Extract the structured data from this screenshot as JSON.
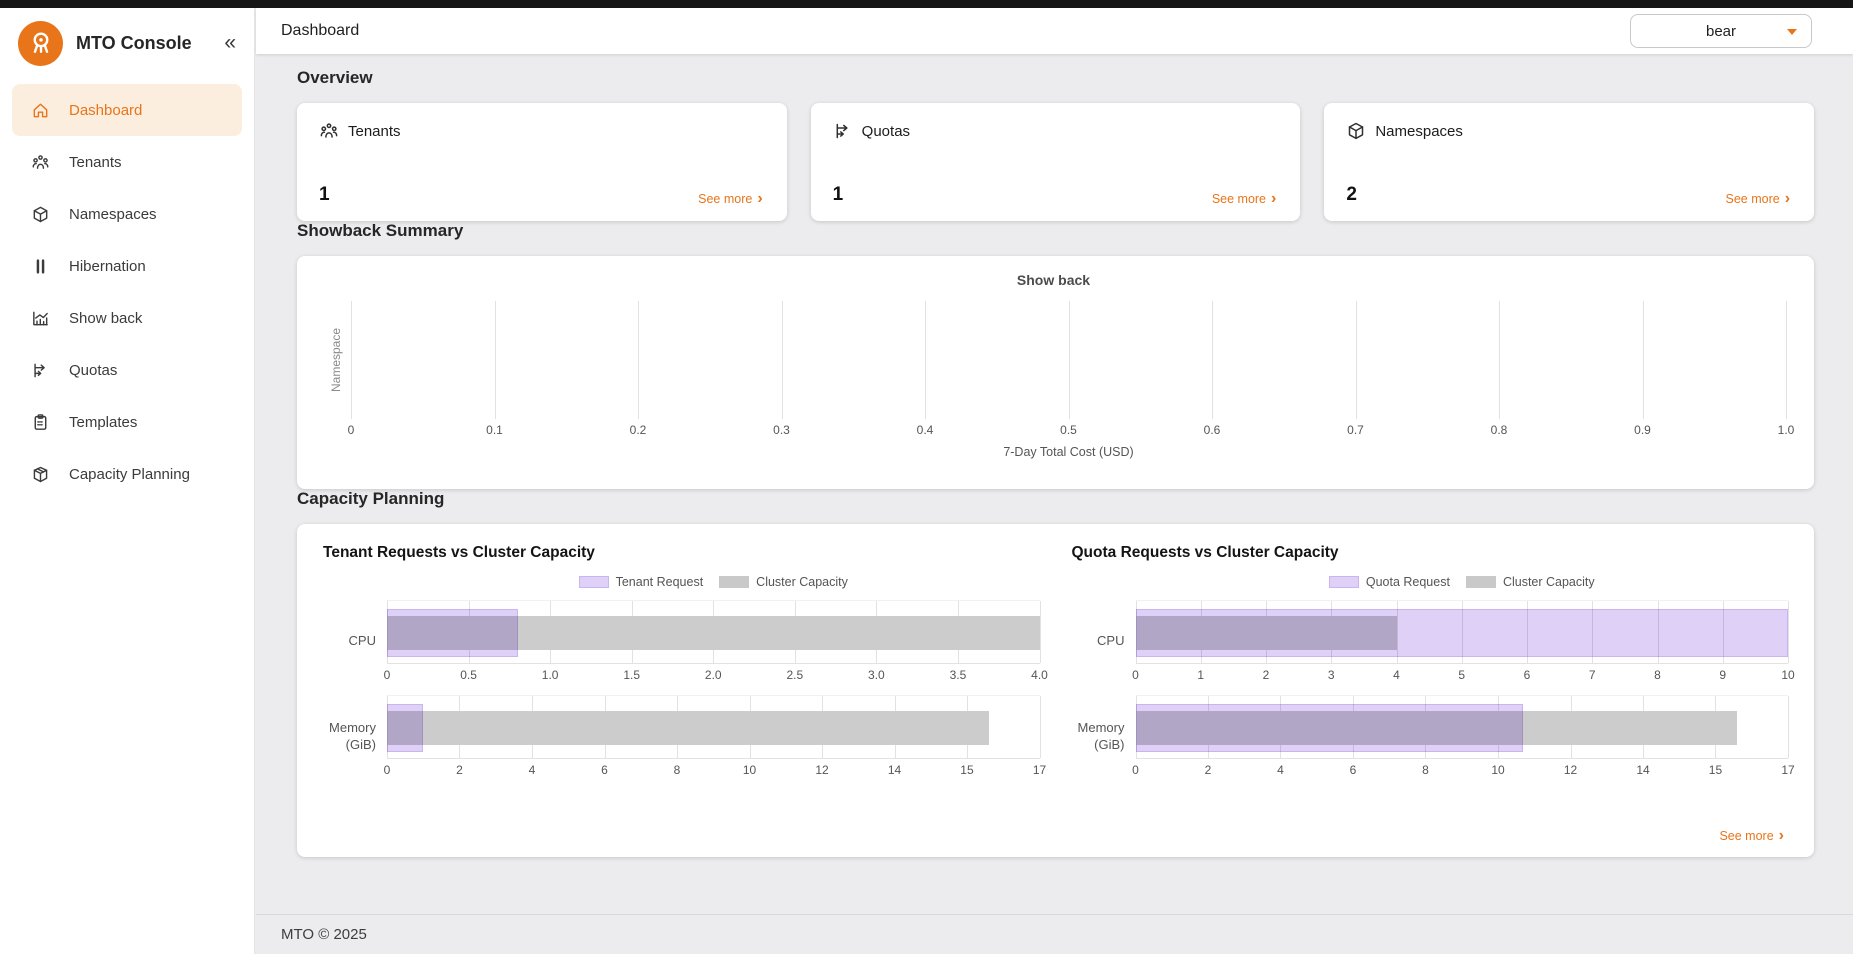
{
  "app": {
    "title": "MTO Console"
  },
  "glyphs": {
    "collapse": "«",
    "chevron_right": "›"
  },
  "header": {
    "title": "Dashboard",
    "tenant_selected": "bear"
  },
  "sidebar": {
    "items": [
      {
        "label": "Dashboard",
        "icon": "home-icon",
        "active": true
      },
      {
        "label": "Tenants",
        "icon": "tenants-icon",
        "active": false
      },
      {
        "label": "Namespaces",
        "icon": "namespaces-icon",
        "active": false
      },
      {
        "label": "Hibernation",
        "icon": "hibernation-icon",
        "active": false
      },
      {
        "label": "Show back",
        "icon": "showback-icon",
        "active": false
      },
      {
        "label": "Quotas",
        "icon": "quotas-icon",
        "active": false
      },
      {
        "label": "Templates",
        "icon": "templates-icon",
        "active": false
      },
      {
        "label": "Capacity Planning",
        "icon": "capacity-planning-icon",
        "active": false
      }
    ]
  },
  "sections": {
    "overview": "Overview",
    "showback": "Showback Summary",
    "capacity": "Capacity Planning"
  },
  "labels": {
    "see_more": "See more"
  },
  "overview": {
    "cards": [
      {
        "label": "Tenants",
        "value": "1",
        "icon": "tenants-icon"
      },
      {
        "label": "Quotas",
        "value": "1",
        "icon": "quotas-icon"
      },
      {
        "label": "Namespaces",
        "value": "2",
        "icon": "namespaces-icon"
      }
    ]
  },
  "footer": {
    "text": "MTO © 2025"
  },
  "colors": {
    "accent_orange": "#E8751A",
    "active_item_bg": "#FCEEDF",
    "request_purple": "#DED0F6",
    "request_purple_border": "#C9B5F0",
    "capacity_gray": "#CCCCCC",
    "topbar_black": "#161616",
    "content_bg": "#ECECEE"
  },
  "chart_data": [
    {
      "id": "showback",
      "type": "bar",
      "orientation": "horizontal",
      "title": "Show back",
      "xlabel": "7-Day Total Cost (USD)",
      "ylabel": "Namespace",
      "xlim": [
        0,
        1.0
      ],
      "xtick_values": [
        0,
        0.1,
        0.2,
        0.3,
        0.4,
        0.5,
        0.6,
        0.7,
        0.8,
        0.9,
        1.0
      ],
      "xtick_labels": [
        "0",
        "0.1",
        "0.2",
        "0.3",
        "0.4",
        "0.5",
        "0.6",
        "0.7",
        "0.8",
        "0.9",
        "1.0"
      ],
      "grid": true,
      "categories": [],
      "values": []
    },
    {
      "id": "tenant-vs-capacity",
      "type": "bar",
      "orientation": "horizontal",
      "title": "Tenant Requests vs Cluster Capacity",
      "legend": [
        "Tenant Request",
        "Cluster Capacity"
      ],
      "legend_position": "top-center",
      "rows": [
        {
          "label": "CPU",
          "ticks": [
            0,
            0.5,
            1,
            1.5,
            2,
            2.5,
            3,
            3.5,
            4
          ],
          "tick_labels": [
            "0",
            "0.5",
            "1.0",
            "1.5",
            "2.0",
            "2.5",
            "3.0",
            "3.5",
            "4.0"
          ],
          "request": 0.8,
          "capacity": 4.0
        },
        {
          "label": "Memory (GiB)",
          "ticks": [
            0,
            2,
            4,
            6,
            8,
            10,
            12,
            14,
            15,
            17
          ],
          "tick_labels": [
            "0",
            "2",
            "4",
            "6",
            "8",
            "10",
            "12",
            "14",
            "15",
            "17"
          ],
          "request": 1.0,
          "capacity": 15.6
        }
      ]
    },
    {
      "id": "quota-vs-capacity",
      "type": "bar",
      "orientation": "horizontal",
      "title": "Quota Requests vs Cluster Capacity",
      "legend": [
        "Quota Request",
        "Cluster Capacity"
      ],
      "legend_position": "top-center",
      "rows": [
        {
          "label": "CPU",
          "ticks": [
            0,
            1,
            2,
            3,
            4,
            5,
            6,
            7,
            8,
            9,
            10
          ],
          "tick_labels": [
            "0",
            "1",
            "2",
            "3",
            "4",
            "5",
            "6",
            "7",
            "8",
            "9",
            "10"
          ],
          "request": 10.0,
          "capacity": 4.0
        },
        {
          "label": "Memory (GiB)",
          "ticks": [
            0,
            2,
            4,
            6,
            8,
            10,
            12,
            14,
            15,
            17
          ],
          "tick_labels": [
            "0",
            "2",
            "4",
            "6",
            "8",
            "10",
            "12",
            "14",
            "15",
            "17"
          ],
          "request": 10.7,
          "capacity": 15.6
        }
      ]
    }
  ]
}
